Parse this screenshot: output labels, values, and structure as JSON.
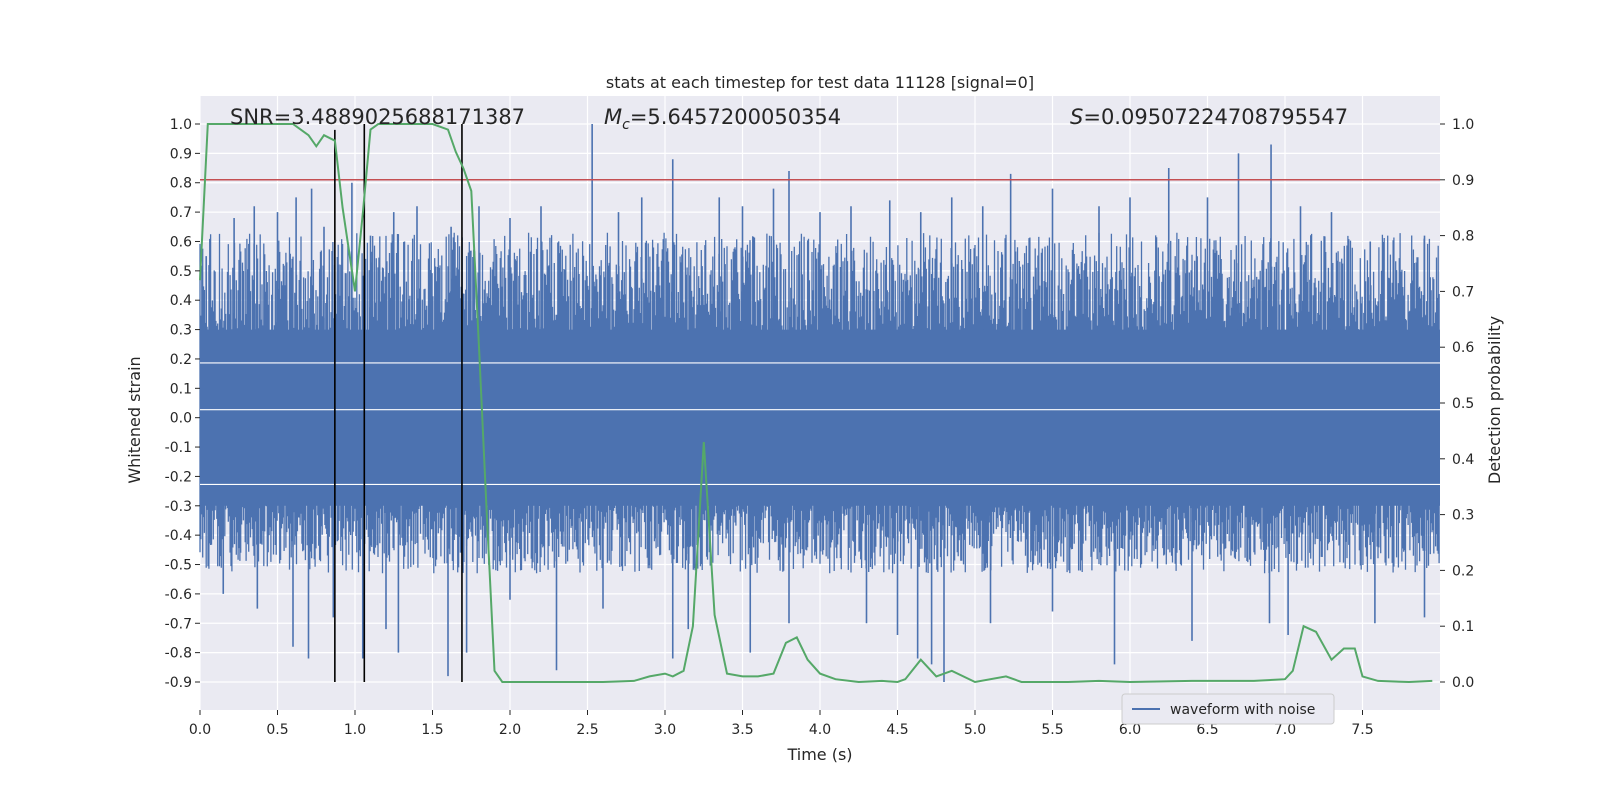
{
  "chart_data": {
    "type": "line",
    "title": "stats at each timestep for test data 11128 [signal=0]",
    "xlabel": "Time (s)",
    "ylabel": "Whitened strain",
    "y2label": "Detection probability",
    "xlim": [
      0.0,
      8.0
    ],
    "ylim": [
      -1.0,
      1.1
    ],
    "y2lim": [
      -0.05,
      1.05
    ],
    "xticks": [
      "0.0",
      "0.5",
      "1.0",
      "1.5",
      "2.0",
      "2.5",
      "3.0",
      "3.5",
      "4.0",
      "4.5",
      "5.0",
      "5.5",
      "6.0",
      "6.5",
      "7.0",
      "7.5"
    ],
    "yticks": [
      "1.0",
      "0.9",
      "0.8",
      "0.7",
      "0.6",
      "0.5",
      "0.4",
      "0.3",
      "0.2",
      "0.1",
      "0.0",
      "-0.1",
      "-0.2",
      "-0.3",
      "-0.4",
      "-0.5",
      "-0.6",
      "-0.7",
      "-0.8",
      "-0.9"
    ],
    "y2ticks": [
      "1.0",
      "0.9",
      "0.8",
      "0.7",
      "0.6",
      "0.5",
      "0.4",
      "0.3",
      "0.2",
      "0.1",
      "0.0"
    ],
    "grid": true,
    "legend_position": "lower right",
    "annotations": {
      "snr_text": "SNR=3.4889025688171387",
      "mc_symbol": "M",
      "mc_sub": "c",
      "mc_value": "=5.6457200050354",
      "s_symbol": "S",
      "s_value": "=0.09507224708795547"
    },
    "threshold": {
      "axis": "right",
      "y": 0.9,
      "color": "#c44e52"
    },
    "vlines": [
      {
        "x": 0.87,
        "ymin": -0.9,
        "ymax": 0.98
      },
      {
        "x": 1.06,
        "ymin": -0.9,
        "ymax": 1.0
      },
      {
        "x": 1.69,
        "ymin": -0.9,
        "ymax": 1.0
      }
    ],
    "series": [
      {
        "name": "waveform with noise",
        "axis": "left",
        "color": "#4c72b0",
        "core_band": [
          -0.3,
          0.3
        ],
        "spikes": [
          {
            "x": 0.04,
            "y": 0.55
          },
          {
            "x": 0.22,
            "y": 0.68
          },
          {
            "x": 0.35,
            "y": 0.72
          },
          {
            "x": 0.5,
            "y": 0.7
          },
          {
            "x": 0.62,
            "y": 0.75
          },
          {
            "x": 0.72,
            "y": 0.78
          },
          {
            "x": 0.8,
            "y": 0.65
          },
          {
            "x": 0.98,
            "y": 0.8
          },
          {
            "x": 1.1,
            "y": 0.62
          },
          {
            "x": 1.25,
            "y": 0.7
          },
          {
            "x": 1.4,
            "y": 0.72
          },
          {
            "x": 1.62,
            "y": 0.65
          },
          {
            "x": 1.8,
            "y": 0.72
          },
          {
            "x": 2.0,
            "y": 0.68
          },
          {
            "x": 2.2,
            "y": 0.72
          },
          {
            "x": 2.53,
            "y": 1.0
          },
          {
            "x": 2.7,
            "y": 0.7
          },
          {
            "x": 2.85,
            "y": 0.75
          },
          {
            "x": 3.05,
            "y": 0.88
          },
          {
            "x": 3.35,
            "y": 0.75
          },
          {
            "x": 3.5,
            "y": 0.72
          },
          {
            "x": 3.7,
            "y": 0.78
          },
          {
            "x": 3.8,
            "y": 0.84
          },
          {
            "x": 4.0,
            "y": 0.7
          },
          {
            "x": 4.2,
            "y": 0.72
          },
          {
            "x": 4.45,
            "y": 0.74
          },
          {
            "x": 4.65,
            "y": 0.7
          },
          {
            "x": 4.85,
            "y": 0.75
          },
          {
            "x": 5.05,
            "y": 0.72
          },
          {
            "x": 5.23,
            "y": 0.83
          },
          {
            "x": 5.5,
            "y": 0.78
          },
          {
            "x": 5.8,
            "y": 0.72
          },
          {
            "x": 6.0,
            "y": 0.75
          },
          {
            "x": 6.25,
            "y": 0.85
          },
          {
            "x": 6.5,
            "y": 0.75
          },
          {
            "x": 6.7,
            "y": 0.9
          },
          {
            "x": 6.91,
            "y": 0.93
          },
          {
            "x": 7.1,
            "y": 0.72
          },
          {
            "x": 7.3,
            "y": 0.7
          },
          {
            "x": 7.55,
            "y": 0.6
          },
          {
            "x": 7.9,
            "y": 0.62
          }
        ],
        "neg_spikes": [
          {
            "x": 0.15,
            "y": -0.6
          },
          {
            "x": 0.37,
            "y": -0.65
          },
          {
            "x": 0.6,
            "y": -0.78
          },
          {
            "x": 0.7,
            "y": -0.82
          },
          {
            "x": 0.86,
            "y": -0.68
          },
          {
            "x": 1.05,
            "y": -0.82
          },
          {
            "x": 1.2,
            "y": -0.72
          },
          {
            "x": 1.28,
            "y": -0.8
          },
          {
            "x": 1.6,
            "y": -0.88
          },
          {
            "x": 1.72,
            "y": -0.8
          },
          {
            "x": 2.0,
            "y": -0.62
          },
          {
            "x": 2.3,
            "y": -0.86
          },
          {
            "x": 2.6,
            "y": -0.65
          },
          {
            "x": 3.05,
            "y": -0.82
          },
          {
            "x": 3.15,
            "y": -0.72
          },
          {
            "x": 3.55,
            "y": -0.8
          },
          {
            "x": 3.8,
            "y": -0.7
          },
          {
            "x": 4.3,
            "y": -0.7
          },
          {
            "x": 4.5,
            "y": -0.74
          },
          {
            "x": 4.63,
            "y": -0.82
          },
          {
            "x": 4.72,
            "y": -0.84
          },
          {
            "x": 4.8,
            "y": -0.9
          },
          {
            "x": 5.1,
            "y": -0.7
          },
          {
            "x": 5.5,
            "y": -0.66
          },
          {
            "x": 5.9,
            "y": -0.84
          },
          {
            "x": 6.4,
            "y": -0.76
          },
          {
            "x": 6.9,
            "y": -0.7
          },
          {
            "x": 7.02,
            "y": -0.74
          },
          {
            "x": 7.58,
            "y": -0.7
          },
          {
            "x": 7.9,
            "y": -0.68
          }
        ]
      },
      {
        "name": "",
        "axis": "right",
        "color": "#55a868",
        "x": [
          0.0,
          0.05,
          0.1,
          0.3,
          0.5,
          0.6,
          0.7,
          0.75,
          0.8,
          0.87,
          0.92,
          1.0,
          1.05,
          1.1,
          1.15,
          1.2,
          1.3,
          1.5,
          1.6,
          1.65,
          1.7,
          1.75,
          1.8,
          1.85,
          1.9,
          1.95,
          2.0,
          2.3,
          2.6,
          2.8,
          2.9,
          3.0,
          3.05,
          3.12,
          3.18,
          3.25,
          3.32,
          3.4,
          3.5,
          3.6,
          3.7,
          3.78,
          3.85,
          3.92,
          4.0,
          4.1,
          4.25,
          4.4,
          4.5,
          4.55,
          4.65,
          4.75,
          4.85,
          5.0,
          5.2,
          5.3,
          5.6,
          5.8,
          6.0,
          6.4,
          6.8,
          7.0,
          7.05,
          7.12,
          7.2,
          7.3,
          7.38,
          7.45,
          7.5,
          7.6,
          7.8,
          7.95
        ],
        "y": [
          0.72,
          1.0,
          1.0,
          1.0,
          1.0,
          1.0,
          0.98,
          0.96,
          0.98,
          0.97,
          0.85,
          0.7,
          0.84,
          0.99,
          1.0,
          1.0,
          1.0,
          1.0,
          0.99,
          0.95,
          0.92,
          0.88,
          0.6,
          0.3,
          0.02,
          0.0,
          0.0,
          0.0,
          0.0,
          0.002,
          0.01,
          0.015,
          0.01,
          0.02,
          0.1,
          0.43,
          0.12,
          0.015,
          0.01,
          0.01,
          0.015,
          0.07,
          0.08,
          0.04,
          0.015,
          0.005,
          0.0,
          0.002,
          0.0,
          0.005,
          0.04,
          0.01,
          0.02,
          0.0,
          0.01,
          0.0,
          0.0,
          0.002,
          0.0,
          0.002,
          0.002,
          0.005,
          0.02,
          0.1,
          0.09,
          0.04,
          0.06,
          0.06,
          0.01,
          0.002,
          0.0,
          0.002
        ]
      }
    ]
  }
}
